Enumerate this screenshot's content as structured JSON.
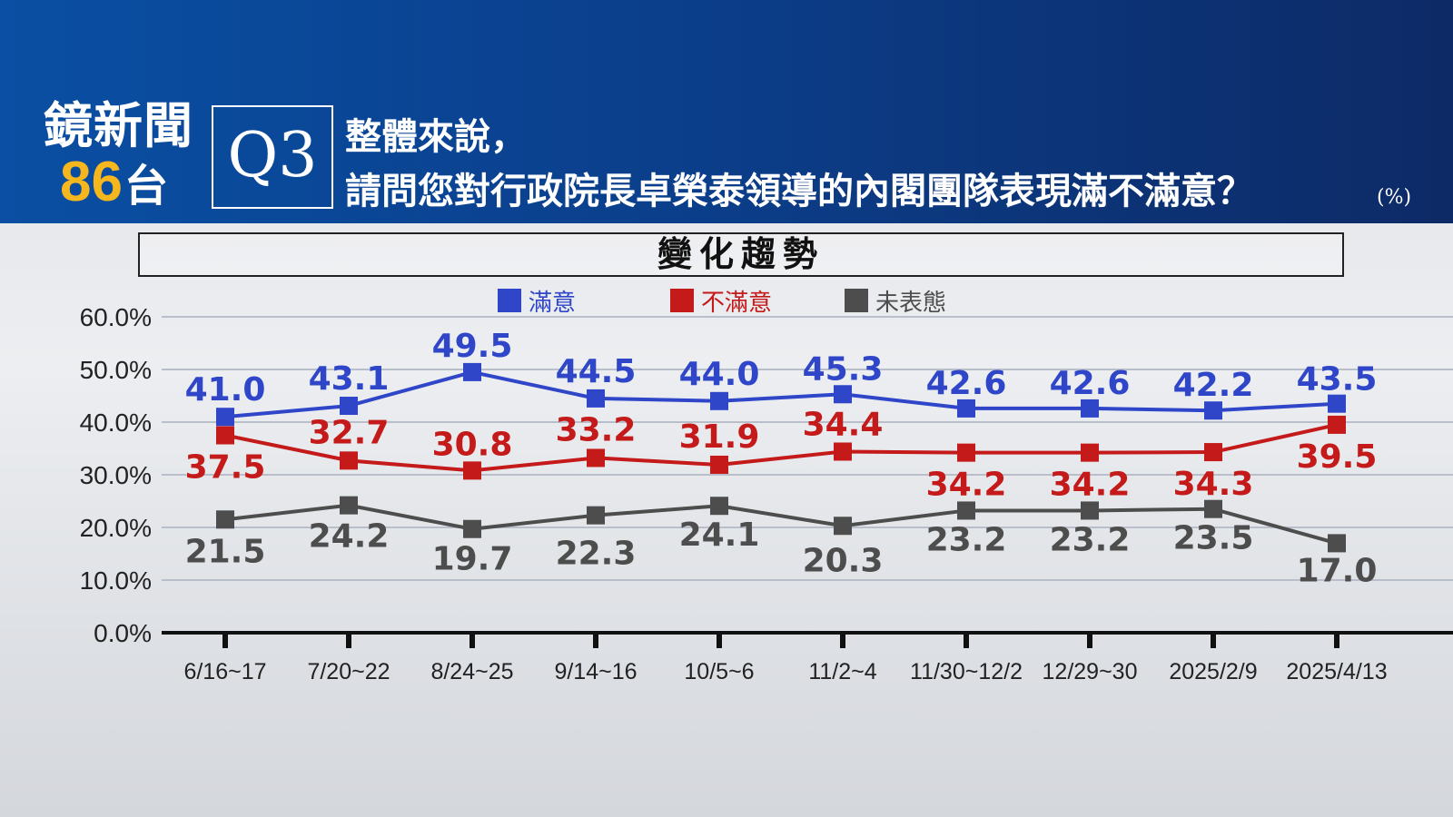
{
  "header": {
    "logo_name": "鏡新聞",
    "logo_number": "86",
    "logo_suffix": "台",
    "question_id": "Q3",
    "question_line1": "整體來說，",
    "question_line2": "請問您對行政院長卓榮泰領導的內閣團隊表現滿不滿意？",
    "unit": "(%)"
  },
  "colors": {
    "satisfied": "#2f46c9",
    "unsatisfied": "#c41a1a",
    "no_opinion": "#4d4d4d"
  },
  "chart_data": {
    "type": "line",
    "title": "變化趨勢",
    "categories": [
      "6/16~17",
      "7/20~22",
      "8/24~25",
      "9/14~16",
      "10/5~6",
      "11/2~4",
      "11/30~12/2",
      "12/29~30",
      "2025/2/9",
      "2025/4/13"
    ],
    "ylim": [
      0,
      60
    ],
    "yticks": [
      "0.0%",
      "10.0%",
      "20.0%",
      "30.0%",
      "40.0%",
      "50.0%",
      "60.0%"
    ],
    "grid": true,
    "legend_position": "top-center",
    "series": [
      {
        "name": "滿意",
        "values": [
          41.0,
          43.1,
          49.5,
          44.5,
          44.0,
          45.3,
          42.6,
          42.6,
          42.2,
          43.5
        ],
        "labels": [
          "41.0",
          "43.1",
          "49.5",
          "44.5",
          "44.0",
          "45.3",
          "42.6",
          "42.6",
          "42.2",
          "43.5"
        ]
      },
      {
        "name": "不滿意",
        "values": [
          37.5,
          32.7,
          30.8,
          33.2,
          31.9,
          34.4,
          34.2,
          34.2,
          34.3,
          39.5
        ],
        "labels": [
          "37.5",
          "32.7",
          "30.8",
          "33.2",
          "31.9",
          "34.4",
          "34.2",
          "34.2",
          "34.3",
          "39.5"
        ]
      },
      {
        "name": "未表態",
        "values": [
          21.5,
          24.2,
          19.7,
          22.3,
          24.1,
          20.3,
          23.2,
          23.2,
          23.5,
          17.0
        ],
        "labels": [
          "21.5",
          "24.2",
          "19.7",
          "22.3",
          "24.1",
          "20.3",
          "23.2",
          "23.2",
          "23.5",
          "17.0"
        ]
      }
    ]
  }
}
